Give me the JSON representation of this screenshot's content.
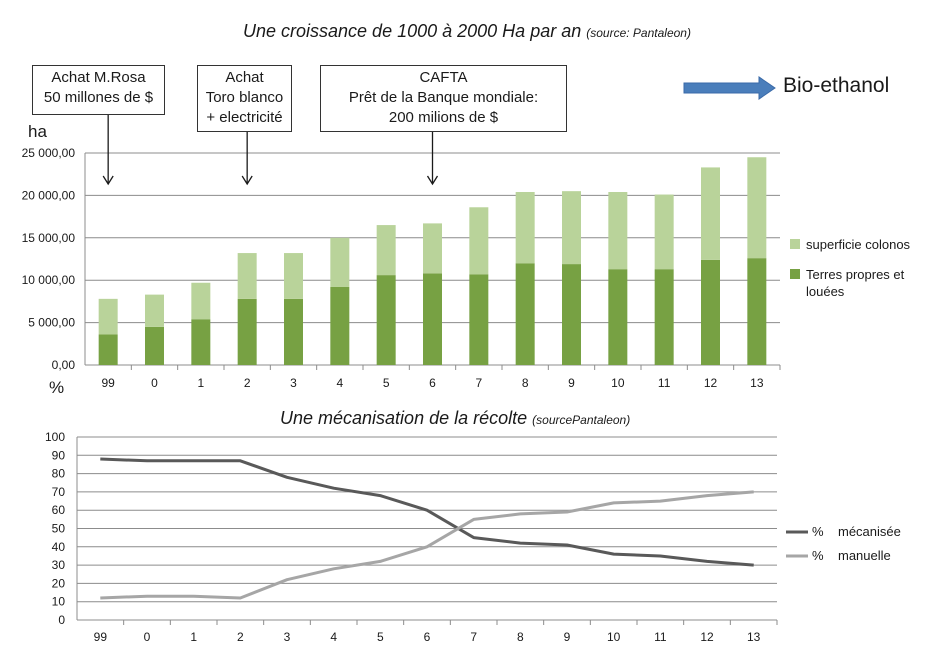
{
  "top_title": {
    "main": "Une croissance de 1000 à 2000 Ha par an",
    "source": "(source: Pantaleon)"
  },
  "bottom_title": {
    "main": "Une mécanisation de la récolte",
    "source": "(sourcePantaleon)"
  },
  "annotations": [
    {
      "lines": [
        "Achat M.Rosa",
        "50 millones de $"
      ],
      "category": "99"
    },
    {
      "lines": [
        "Achat",
        "Toro blanco",
        "+ electricité"
      ],
      "category": "2"
    },
    {
      "lines": [
        "CAFTA",
        "Prêt de la Banque mondiale:",
        "200 milions de $"
      ],
      "category": "6"
    }
  ],
  "bio_ethanol": {
    "label": "Bio-ethanol",
    "arrow_color": "#4a7ebb"
  },
  "top_unit": "ha",
  "bottom_unit": "%",
  "chart_data": [
    {
      "type": "bar",
      "stacked": true,
      "categories": [
        "99",
        "0",
        "1",
        "2",
        "3",
        "4",
        "5",
        "6",
        "7",
        "8",
        "9",
        "10",
        "11",
        "12",
        "13"
      ],
      "ylabel": "ha",
      "ylim": [
        0,
        25000
      ],
      "yticks": [
        "0,00",
        "5 000,00",
        "10 000,00",
        "15 000,00",
        "20 000,00",
        "25 000,00"
      ],
      "grid": true,
      "legend_position": "right",
      "series": [
        {
          "name": "Terres propres et louées",
          "name_lines": [
            "Terres propres et",
            "louées"
          ],
          "color": "#77a143",
          "values": [
            3600,
            4500,
            5400,
            7800,
            7800,
            9200,
            10600,
            10800,
            10700,
            12000,
            11900,
            11300,
            11300,
            12400,
            12600
          ]
        },
        {
          "name": "superficie colonos",
          "name_lines": [
            "superficie colonos"
          ],
          "color": "#b9d39a",
          "values": [
            4200,
            3800,
            4300,
            5400,
            5400,
            5800,
            5900,
            5900,
            7900,
            8400,
            8600,
            9100,
            8800,
            10900,
            11900
          ]
        }
      ]
    },
    {
      "type": "line",
      "categories": [
        "99",
        "0",
        "1",
        "2",
        "3",
        "4",
        "5",
        "6",
        "7",
        "8",
        "9",
        "10",
        "11",
        "12",
        "13"
      ],
      "ylim": [
        0,
        100
      ],
      "yticks": [
        "0",
        "10",
        "20",
        "30",
        "40",
        "50",
        "60",
        "70",
        "80",
        "90",
        "100"
      ],
      "grid": true,
      "legend_position": "right",
      "series": [
        {
          "name": "mécanisée",
          "prefix": "%",
          "color": "#595959",
          "values": [
            88,
            87,
            87,
            87,
            78,
            72,
            68,
            60,
            45,
            42,
            41,
            36,
            35,
            32,
            30
          ]
        },
        {
          "name": "manuelle",
          "prefix": "%",
          "color": "#a6a6a6",
          "values": [
            12,
            13,
            13,
            12,
            22,
            28,
            32,
            40,
            55,
            58,
            59,
            64,
            65,
            68,
            70
          ]
        }
      ]
    }
  ]
}
